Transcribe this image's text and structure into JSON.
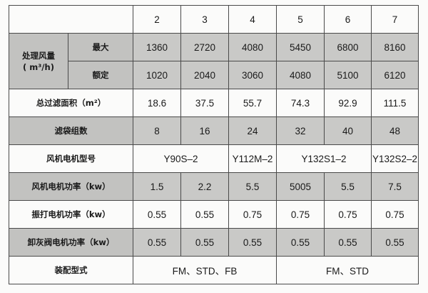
{
  "header": {
    "models": [
      "2",
      "3",
      "4",
      "5",
      "6",
      "7"
    ]
  },
  "rows": {
    "airflow": {
      "label": "处理风量",
      "unit": "( m³/h)",
      "max": {
        "label": "最大",
        "values": [
          "1360",
          "2720",
          "4080",
          "5450",
          "6800",
          "8160"
        ]
      },
      "rated": {
        "label": "额定",
        "values": [
          "1020",
          "2040",
          "3060",
          "4080",
          "5100",
          "6120"
        ]
      }
    },
    "filter_area": {
      "label": "总过滤面积（m²）",
      "values": [
        "18.6",
        "37.5",
        "55.7",
        "74.3",
        "92.9",
        "111.5"
      ]
    },
    "bag_groups": {
      "label": "滤袋组数",
      "values": [
        "8",
        "16",
        "24",
        "32",
        "40",
        "48"
      ]
    },
    "fan_motor_model": {
      "label": "风机电机型号",
      "values": [
        "Y90S–2",
        "Y112M–2",
        "Y132S1–2",
        "Y132S2–2"
      ]
    },
    "fan_motor_power": {
      "label": "风机电机功率（kw）",
      "values": [
        "1.5",
        "2.2",
        "5.5",
        "5005",
        "5.5",
        "7.5"
      ]
    },
    "shaker_motor_power": {
      "label": "振打电机功率（kw）",
      "values": [
        "0.55",
        "0.55",
        "0.75",
        "0.75",
        "0.75",
        "0.75"
      ]
    },
    "valve_motor_power": {
      "label": "卸灰阀电机功率（kw）",
      "values": [
        "0.55",
        "0.55",
        "0.55",
        "0.55",
        "0.55",
        "0.55"
      ]
    },
    "assembly_type": {
      "label": "装配型式",
      "values": [
        "FM、STD、FB",
        "FM、STD"
      ]
    }
  },
  "colors": {
    "shade": "#c9c9c7",
    "border": "#4a4a4a"
  }
}
